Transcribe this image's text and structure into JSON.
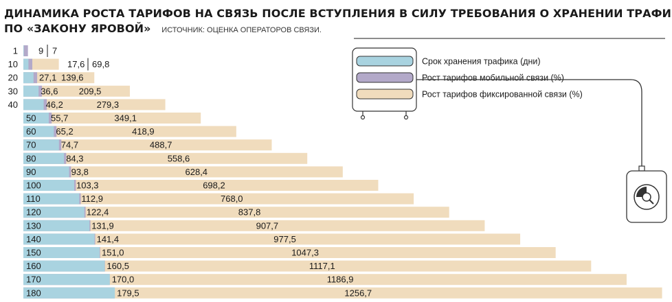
{
  "title": {
    "line1": "ДИНАМИКА РОСТА ТАРИФОВ НА СВЯЗЬ ПОСЛЕ ВСТУПЛЕНИЯ В СИЛУ ТРЕБОВАНИЯ О ХРАНЕНИИ ТРАФИКА",
    "line2": "ПО «ЗАКОНУ ЯРОВОЙ»",
    "source": "ИСТОЧНИК: ОЦЕНКА ОПЕРАТОРОВ СВЯЗИ."
  },
  "colors": {
    "days": "#a9d3e0",
    "mobile": "#b3a9c9",
    "fixed": "#f0dcbd",
    "device_stroke": "#333333"
  },
  "chart_data": {
    "type": "bar",
    "orientation": "horizontal",
    "stacking": "layered",
    "legend_position": "top-right",
    "series": [
      {
        "name": "Срок хранения трафика (дни)",
        "key": "days"
      },
      {
        "name": "Рост тарифов мобильной связи (%)",
        "key": "mobile"
      },
      {
        "name": "Рост тарифов фиксированной связи (%)",
        "key": "fixed"
      }
    ],
    "rows": [
      {
        "days": 1,
        "days_label": "1",
        "mobile": 9,
        "mobile_label": "9",
        "fixed": 7,
        "fixed_label": "7"
      },
      {
        "days": 10,
        "days_label": "10",
        "mobile": 17.6,
        "mobile_label": "17,6",
        "fixed": 69.8,
        "fixed_label": "69,8"
      },
      {
        "days": 20,
        "days_label": "20",
        "mobile": 27.1,
        "mobile_label": "27,1",
        "fixed": 139.6,
        "fixed_label": "139,6"
      },
      {
        "days": 30,
        "days_label": "30",
        "mobile": 36.6,
        "mobile_label": "36,6",
        "fixed": 209.5,
        "fixed_label": "209,5"
      },
      {
        "days": 40,
        "days_label": "40",
        "mobile": 46.2,
        "mobile_label": "46,2",
        "fixed": 279.3,
        "fixed_label": "279,3"
      },
      {
        "days": 50,
        "days_label": "50",
        "mobile": 55.7,
        "mobile_label": "55,7",
        "fixed": 349.1,
        "fixed_label": "349,1"
      },
      {
        "days": 60,
        "days_label": "60",
        "mobile": 65.2,
        "mobile_label": "65,2",
        "fixed": 418.9,
        "fixed_label": "418,9"
      },
      {
        "days": 70,
        "days_label": "70",
        "mobile": 74.7,
        "mobile_label": "74,7",
        "fixed": 488.7,
        "fixed_label": "488,7"
      },
      {
        "days": 80,
        "days_label": "80",
        "mobile": 84.3,
        "mobile_label": "84,3",
        "fixed": 558.6,
        "fixed_label": "558,6"
      },
      {
        "days": 90,
        "days_label": "90",
        "mobile": 93.8,
        "mobile_label": "93,8",
        "fixed": 628.4,
        "fixed_label": "628,4"
      },
      {
        "days": 100,
        "days_label": "100",
        "mobile": 103.3,
        "mobile_label": "103,3",
        "fixed": 698.2,
        "fixed_label": "698,2"
      },
      {
        "days": 110,
        "days_label": "110",
        "mobile": 112.9,
        "mobile_label": "112,9",
        "fixed": 768.0,
        "fixed_label": "768,0"
      },
      {
        "days": 120,
        "days_label": "120",
        "mobile": 122.4,
        "mobile_label": "122,4",
        "fixed": 837.8,
        "fixed_label": "837,8"
      },
      {
        "days": 130,
        "days_label": "130",
        "mobile": 131.9,
        "mobile_label": "131,9",
        "fixed": 907.7,
        "fixed_label": "907,7"
      },
      {
        "days": 140,
        "days_label": "140",
        "mobile": 141.4,
        "mobile_label": "141,4",
        "fixed": 977.5,
        "fixed_label": "977,5"
      },
      {
        "days": 150,
        "days_label": "150",
        "mobile": 151.0,
        "mobile_label": "151,0",
        "fixed": 1047.3,
        "fixed_label": "1047,3"
      },
      {
        "days": 160,
        "days_label": "160",
        "mobile": 160.5,
        "mobile_label": "160,5",
        "fixed": 1117.1,
        "fixed_label": "1117,1"
      },
      {
        "days": 170,
        "days_label": "170",
        "mobile": 170.0,
        "mobile_label": "170,0",
        "fixed": 1186.9,
        "fixed_label": "1186,9"
      },
      {
        "days": 180,
        "days_label": "180",
        "mobile": 179.5,
        "mobile_label": "179,5",
        "fixed": 1256.7,
        "fixed_label": "1256,7"
      }
    ]
  }
}
